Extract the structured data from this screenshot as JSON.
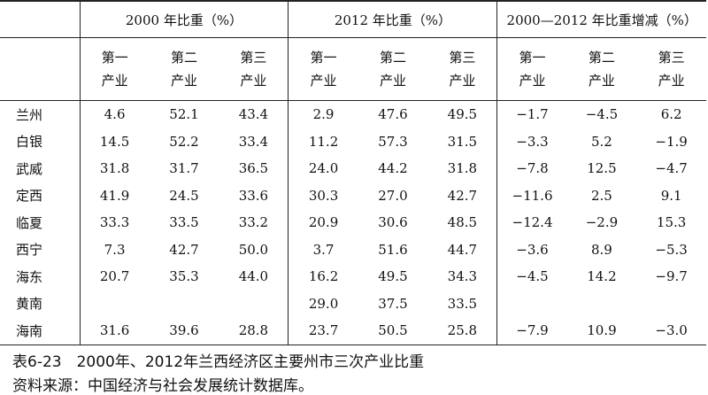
{
  "table": {
    "group_headers": [
      "2000 年比重（%）",
      "2012 年比重（%）",
      "2000—2012 年比重增减（%）"
    ],
    "sub_headers": [
      [
        "第一",
        "产业"
      ],
      [
        "第二",
        "产业"
      ],
      [
        "第三",
        "产业"
      ],
      [
        "第一",
        "产业"
      ],
      [
        "第二",
        "产业"
      ],
      [
        "第三",
        "产业"
      ],
      [
        "第一",
        "产业"
      ],
      [
        "第二",
        "产业"
      ],
      [
        "第三",
        "产业"
      ]
    ],
    "rows": [
      [
        "兰州",
        "4.6",
        "52.1",
        "43.4",
        "2.9",
        "47.6",
        "49.5",
        "−1.7",
        "−4.5",
        "6.2"
      ],
      [
        "白银",
        "14.5",
        "52.2",
        "33.4",
        "11.2",
        "57.3",
        "31.5",
        "−3.3",
        "5.2",
        "−1.9"
      ],
      [
        "武威",
        "31.8",
        "31.7",
        "36.5",
        "24.0",
        "44.2",
        "31.8",
        "−7.8",
        "12.5",
        "−4.7"
      ],
      [
        "定西",
        "41.9",
        "24.5",
        "33.6",
        "30.3",
        "27.0",
        "42.7",
        "−11.6",
        "2.5",
        "9.1"
      ],
      [
        "临夏",
        "33.3",
        "33.5",
        "33.2",
        "20.9",
        "30.6",
        "48.5",
        "−12.4",
        "−2.9",
        "15.3"
      ],
      [
        "西宁",
        "7.3",
        "42.7",
        "50.0",
        "3.7",
        "51.6",
        "44.7",
        "−3.6",
        "8.9",
        "−5.3"
      ],
      [
        "海东",
        "20.7",
        "35.3",
        "44.0",
        "16.2",
        "49.5",
        "34.3",
        "−4.5",
        "14.2",
        "−9.7"
      ],
      [
        "黄南",
        null,
        null,
        null,
        "29.0",
        "37.5",
        "33.5",
        null,
        null,
        null
      ],
      [
        "海南",
        "31.6",
        "39.6",
        "28.8",
        "23.7",
        "50.5",
        "25.8",
        "−7.9",
        "10.9",
        "−3.0"
      ]
    ]
  },
  "caption": {
    "title": "表6-23　2000年、2012年兰西经济区主要州市三次产业比重",
    "source": "资料来源：中国经济与社会发展统计数据库。"
  }
}
